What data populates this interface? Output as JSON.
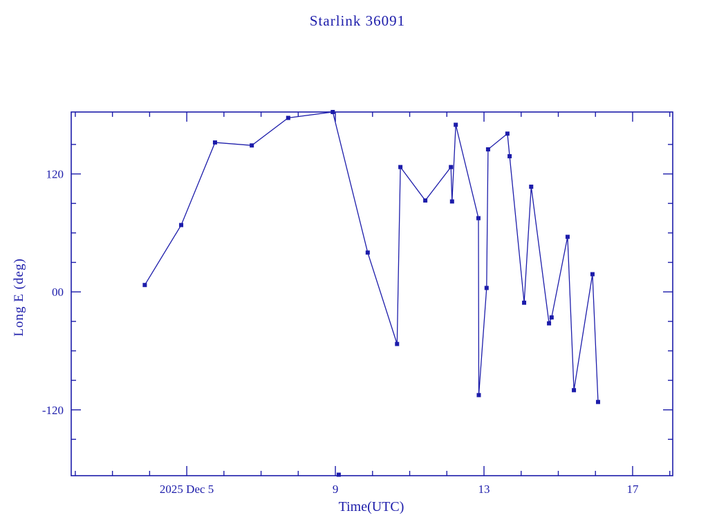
{
  "window": {
    "background": "#ffffff"
  },
  "chart_data": {
    "type": "line",
    "title": "Starlink 36091",
    "xlabel": "Time(UTC)",
    "ylabel": "Long E (deg)",
    "color": "#1c1caa",
    "marker": "filled-square",
    "grid": false,
    "legend": "none",
    "x_unit": "day of December 2025 (UTC)",
    "xlim": [
      1.89,
      18.08
    ],
    "ylim": [
      -187,
      183
    ],
    "x_major_ticks": [
      {
        "day": 5,
        "label": "2025 Dec  5"
      },
      {
        "day": 9,
        "label": "9"
      },
      {
        "day": 13,
        "label": "13"
      },
      {
        "day": 17,
        "label": "17"
      }
    ],
    "x_minor_tick_days": [
      2,
      3,
      4,
      6,
      7,
      8,
      10,
      11,
      12,
      14,
      15,
      16,
      18
    ],
    "y_major_ticks": [
      {
        "value": 120,
        "label": "120"
      },
      {
        "value": 0,
        "label": "00"
      },
      {
        "value": -120,
        "label": "-120"
      }
    ],
    "y_minor_tick_values": [
      150,
      90,
      60,
      30,
      -30,
      -60,
      -90,
      -150
    ],
    "series": [
      {
        "name": "Long E (deg)",
        "points": [
          [
            3.87,
            7
          ],
          [
            4.85,
            68
          ],
          [
            5.76,
            152
          ],
          [
            6.75,
            149
          ],
          [
            7.73,
            177
          ],
          [
            8.93,
            183
          ],
          [
            9.87,
            40
          ],
          [
            10.66,
            -53
          ],
          [
            10.75,
            127
          ],
          [
            11.42,
            93
          ],
          [
            12.11,
            127
          ],
          [
            12.14,
            92
          ],
          [
            12.24,
            170
          ],
          [
            12.85,
            75
          ],
          [
            12.86,
            -105
          ],
          [
            13.07,
            4
          ],
          [
            13.11,
            145
          ],
          [
            13.63,
            161
          ],
          [
            13.69,
            138
          ],
          [
            14.08,
            -11
          ],
          [
            14.27,
            107
          ],
          [
            14.75,
            -32
          ],
          [
            14.82,
            -26
          ],
          [
            15.25,
            56
          ],
          [
            15.42,
            -100
          ],
          [
            15.92,
            18
          ],
          [
            16.07,
            -112
          ]
        ]
      }
    ],
    "isolated_points": [
      [
        9.09,
        -186
      ]
    ]
  }
}
